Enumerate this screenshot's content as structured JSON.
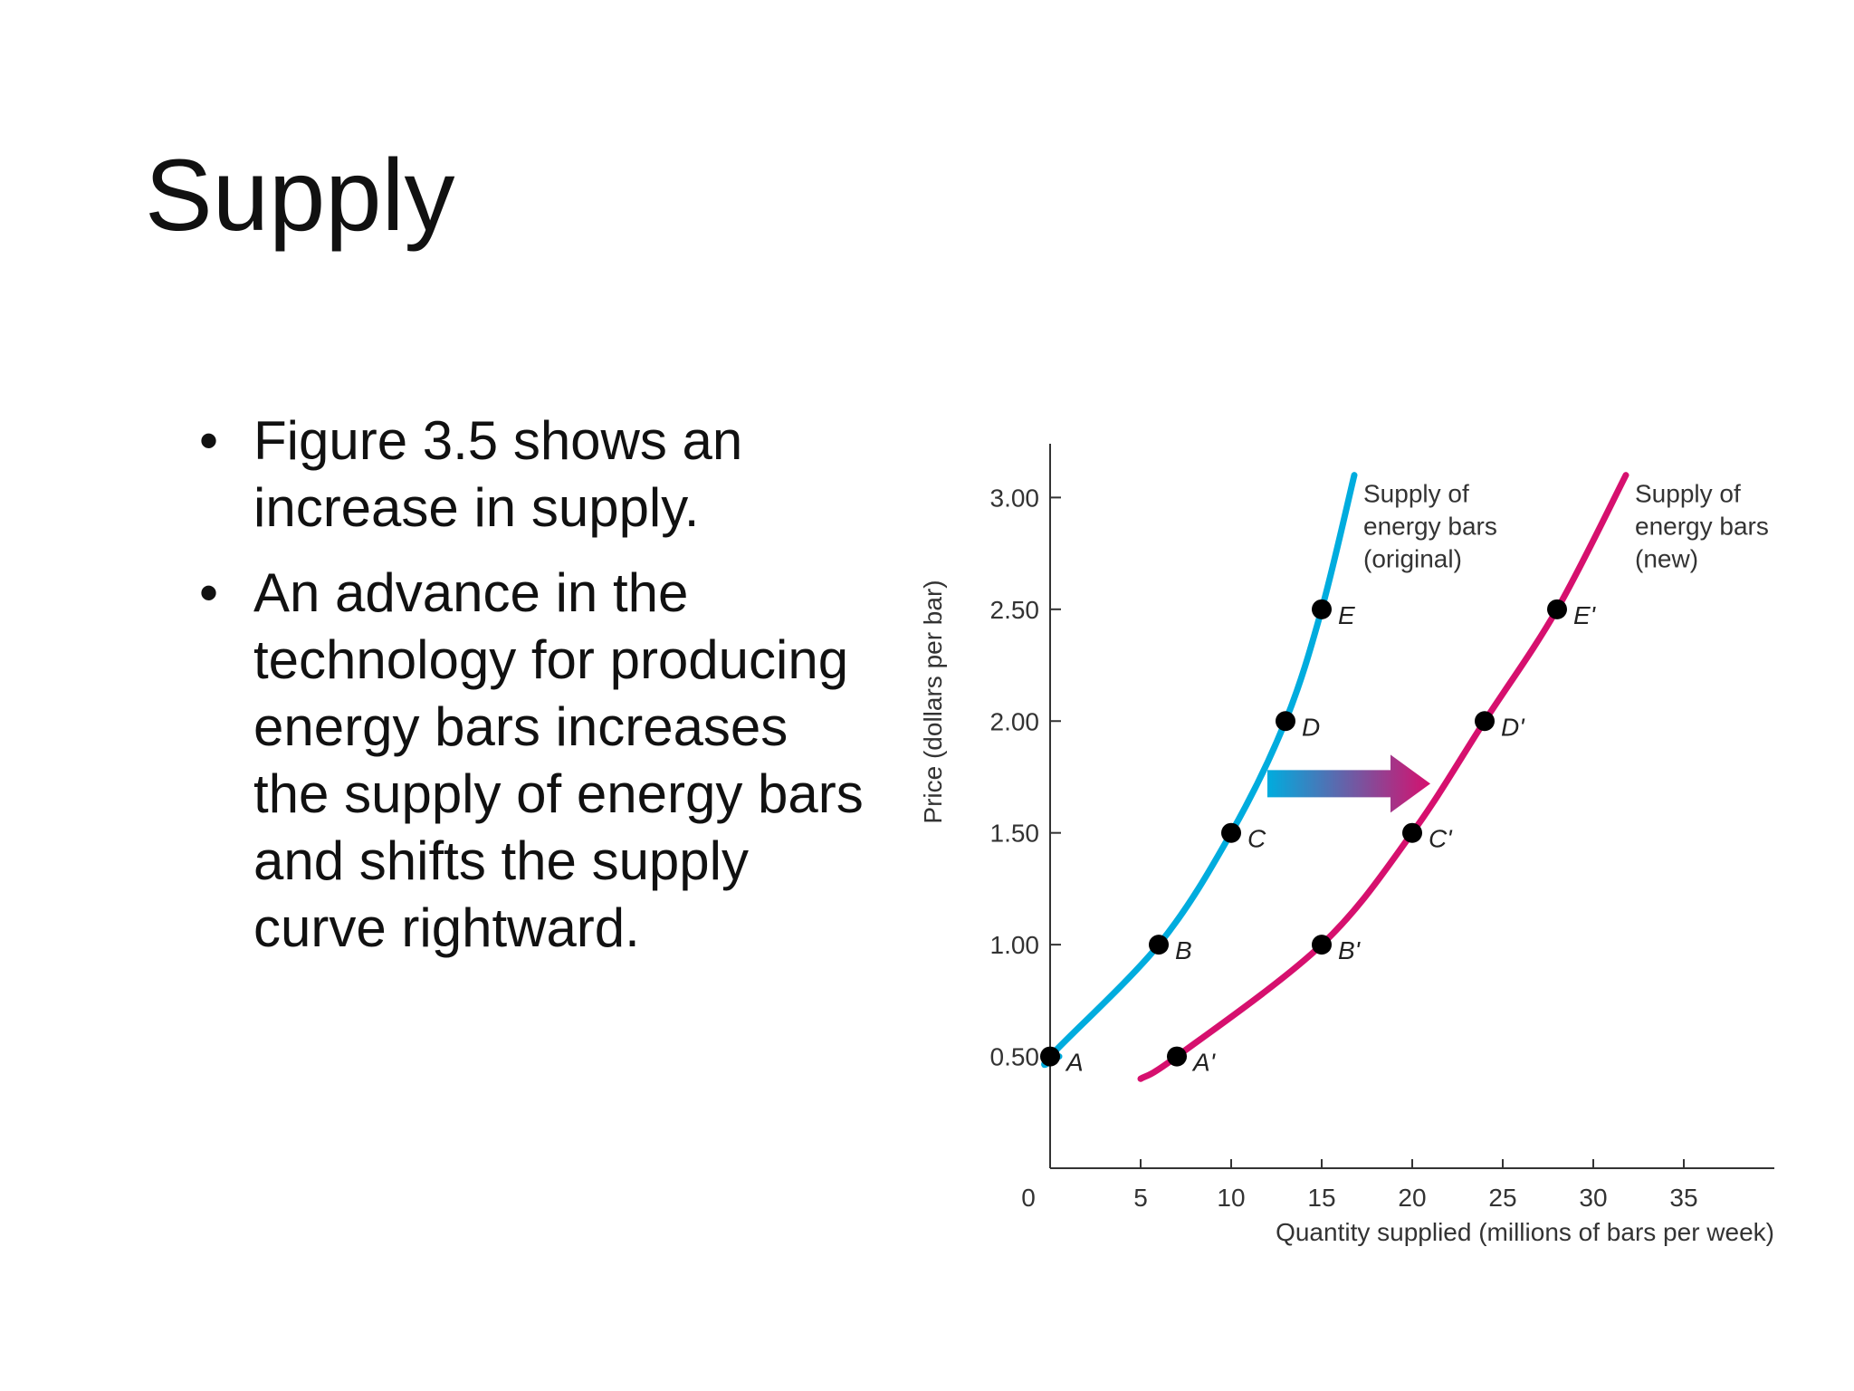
{
  "slide": {
    "title": "Supply",
    "bullets": [
      "Figure 3.5 shows an increase in supply.",
      "An advance in the technology for producing energy bars increases the supply of energy bars and shifts the supply curve rightward."
    ],
    "bullet_glyph": "•"
  },
  "colors": {
    "original": "#00ACDE",
    "new": "#D6106E",
    "axis": "#333333",
    "point": "#000000"
  },
  "chart_data": {
    "type": "line",
    "xlabel": "Quantity supplied (millions of bars per week)",
    "ylabel": "Price (dollars per bar)",
    "xlim": [
      0,
      40
    ],
    "ylim": [
      0,
      3.2
    ],
    "x_ticks": [
      0,
      5,
      10,
      15,
      20,
      25,
      30,
      35
    ],
    "x_tick_labels": [
      "0",
      "5",
      "10",
      "15",
      "20",
      "25",
      "30",
      "35"
    ],
    "y_ticks": [
      0.5,
      1.0,
      1.5,
      2.0,
      2.5,
      3.0
    ],
    "y_tick_labels": [
      "0.50",
      "1.00",
      "1.50",
      "2.00",
      "2.50",
      "3.00"
    ],
    "series": [
      {
        "name": "Supply of energy bars (original)",
        "label_lines": [
          "Supply of",
          "energy bars",
          "(original)"
        ],
        "color_key": "original",
        "points": [
          {
            "label": "A",
            "x": 0,
            "y": 0.5
          },
          {
            "label": "B",
            "x": 6,
            "y": 1.0
          },
          {
            "label": "C",
            "x": 10,
            "y": 1.5
          },
          {
            "label": "D",
            "x": 13,
            "y": 2.0
          },
          {
            "label": "E",
            "x": 15,
            "y": 2.5
          }
        ],
        "curve_start": {
          "x": 0.5,
          "y": 0.5
        },
        "curve_end": {
          "x": 16.8,
          "y": 3.1
        }
      },
      {
        "name": "Supply of energy bars (new)",
        "label_lines": [
          "Supply of",
          "energy bars",
          "(new)"
        ],
        "color_key": "new",
        "points": [
          {
            "label": "A'",
            "x": 7,
            "y": 0.5
          },
          {
            "label": "B'",
            "x": 15,
            "y": 1.0
          },
          {
            "label": "C'",
            "x": 20,
            "y": 1.5
          },
          {
            "label": "D'",
            "x": 24,
            "y": 2.0
          },
          {
            "label": "E'",
            "x": 28,
            "y": 2.5
          }
        ],
        "curve_start": {
          "x": 5,
          "y": 0.4
        },
        "curve_end": {
          "x": 31.8,
          "y": 3.1
        }
      }
    ],
    "shift_arrow": {
      "from": {
        "x": 12,
        "y": 1.72
      },
      "to": {
        "x": 21,
        "y": 1.72
      }
    }
  }
}
